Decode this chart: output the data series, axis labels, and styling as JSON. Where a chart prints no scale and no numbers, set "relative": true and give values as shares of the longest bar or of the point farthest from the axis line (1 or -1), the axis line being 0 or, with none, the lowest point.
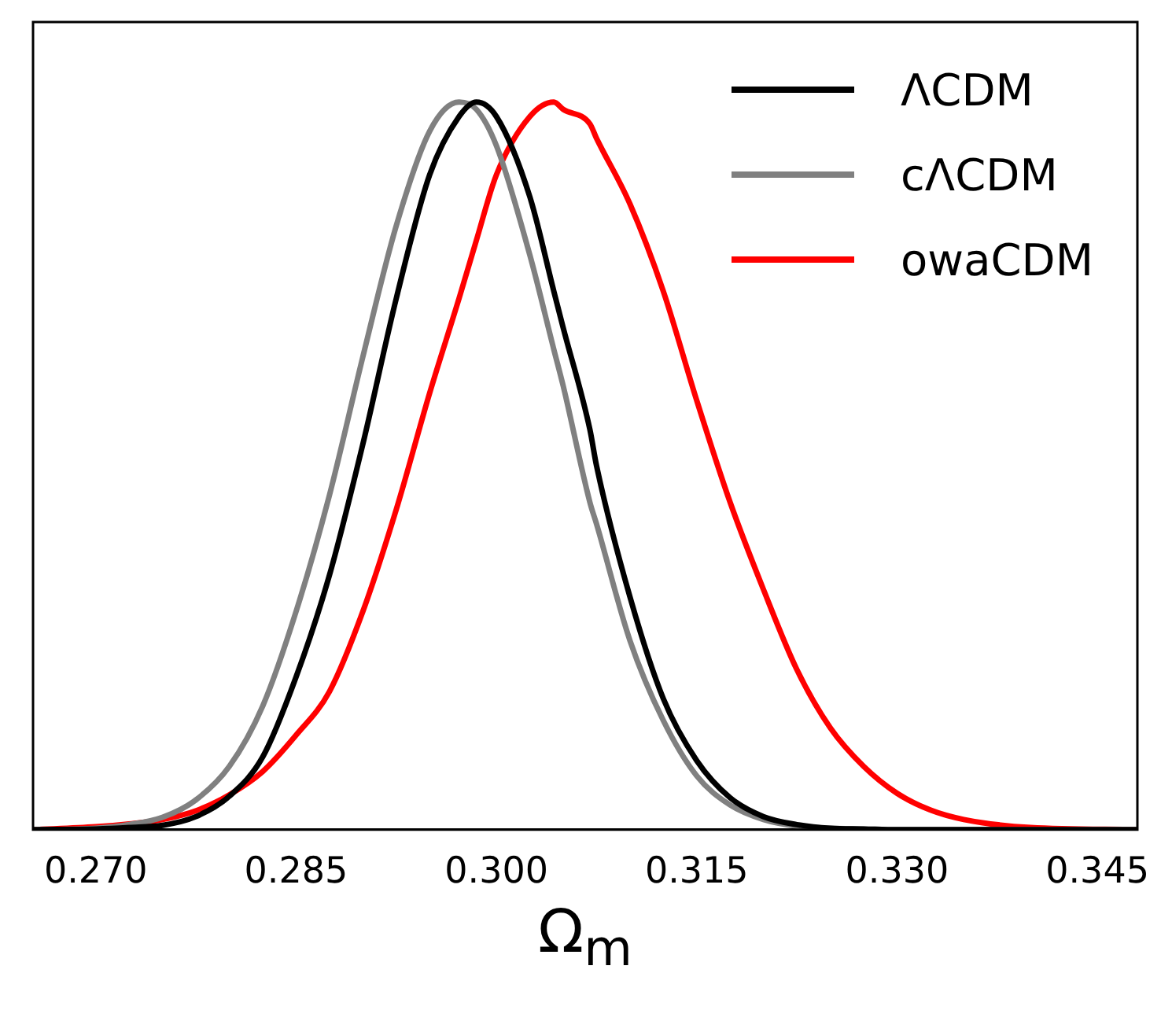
{
  "chart_data": {
    "type": "line",
    "relative": true,
    "xlabel": "Ω$_{m}$",
    "xlim": [
      0.2653,
      0.348
    ],
    "xticks": [
      {
        "value": 0.27,
        "label": "0.270"
      },
      {
        "value": 0.285,
        "label": "0.285"
      },
      {
        "value": 0.3,
        "label": "0.300"
      },
      {
        "value": 0.315,
        "label": "0.315"
      },
      {
        "value": 0.33,
        "label": "0.330"
      },
      {
        "value": 0.345,
        "label": "0.345"
      }
    ],
    "grid": false,
    "legend": "top right",
    "marker": "none",
    "line_style": "solid",
    "x": [
      0.2653,
      0.27,
      0.2725,
      0.275,
      0.2775,
      0.28,
      0.2825,
      0.285,
      0.2875,
      0.29,
      0.2925,
      0.295,
      0.2972,
      0.2985,
      0.3,
      0.3025,
      0.3043,
      0.305,
      0.307,
      0.3075,
      0.31,
      0.3125,
      0.315,
      0.3175,
      0.32,
      0.3225,
      0.325,
      0.3275,
      0.33,
      0.3325,
      0.335,
      0.34,
      0.348
    ],
    "series": [
      {
        "name": "ΛCDM",
        "color": "#000000",
        "values": [
          0,
          0.001,
          0.003,
          0.006,
          0.018,
          0.046,
          0.1,
          0.21,
          0.35,
          0.53,
          0.73,
          0.9,
          0.98,
          1,
          0.98,
          0.87,
          0.74,
          0.69,
          0.55,
          0.5,
          0.32,
          0.18,
          0.095,
          0.044,
          0.018,
          0.007,
          0.002,
          0.001,
          0,
          0,
          0,
          0,
          0
        ]
      },
      {
        "name": "cΛCDM",
        "color": "#808080",
        "values": [
          0,
          0.002,
          0.007,
          0.017,
          0.041,
          0.087,
          0.17,
          0.3,
          0.46,
          0.65,
          0.83,
          0.96,
          1,
          0.99,
          0.94,
          0.79,
          0.66,
          0.61,
          0.45,
          0.42,
          0.26,
          0.15,
          0.074,
          0.034,
          0.014,
          0.005,
          0.002,
          0.001,
          0,
          0,
          0,
          0,
          0
        ]
      },
      {
        "name": "owaCDM",
        "color": "#ff0000",
        "values": [
          0,
          0.004,
          0.008,
          0.014,
          0.026,
          0.048,
          0.08,
          0.13,
          0.19,
          0.3,
          0.44,
          0.6,
          0.73,
          0.81,
          0.9,
          0.98,
          1,
          0.99,
          0.97,
          0.95,
          0.86,
          0.74,
          0.59,
          0.45,
          0.33,
          0.22,
          0.14,
          0.087,
          0.05,
          0.027,
          0.014,
          0.003,
          0
        ]
      }
    ]
  }
}
